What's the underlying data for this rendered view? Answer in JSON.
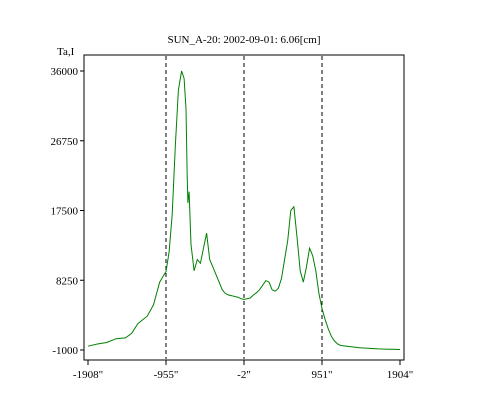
{
  "chart_data": {
    "type": "line",
    "title": "SUN_A-20: 2002-09-01: 6.06[cm]",
    "ylabel": "Ta,I",
    "xlabel": "",
    "xlim": [
      -1908,
      1904
    ],
    "ylim": [
      -1000,
      36000
    ],
    "x_ticks": [
      {
        "value": -1908,
        "label": "-1908\""
      },
      {
        "value": -955,
        "label": "-955\""
      },
      {
        "value": -2,
        "label": "-2\""
      },
      {
        "value": 951,
        "label": "951\""
      },
      {
        "value": 1904,
        "label": "1904\""
      }
    ],
    "y_ticks": [
      {
        "value": 36000,
        "label": "36000"
      },
      {
        "value": 26750,
        "label": "26750"
      },
      {
        "value": 17500,
        "label": "17500"
      },
      {
        "value": 8250,
        "label": "8250"
      },
      {
        "value": -1000,
        "label": "-1000"
      }
    ],
    "vertical_lines": [
      -955,
      -2,
      951
    ],
    "series_color": "#008000",
    "series": [
      {
        "x": [
          -1908,
          -1794,
          -1680,
          -1565,
          -1451,
          -1375,
          -1298,
          -1184,
          -1108,
          -1070,
          -1032,
          -994,
          -955,
          -917,
          -879,
          -841,
          -803,
          -764,
          -734,
          -711,
          -696,
          -688,
          -673,
          -650,
          -612,
          -573,
          -535,
          -497,
          -459,
          -421,
          -382,
          -344,
          -306,
          -268,
          -230,
          -191,
          -153,
          -115,
          -77,
          -38,
          -2,
          36,
          74,
          113,
          151,
          189,
          227,
          265,
          303,
          341,
          380,
          418,
          456,
          494,
          532,
          570,
          608,
          646,
          685,
          723,
          761,
          799,
          837,
          875,
          913,
          951,
          990,
          1028,
          1066,
          1104,
          1142,
          1180,
          1257,
          1333,
          1409,
          1485,
          1561,
          1637,
          1713,
          1790,
          1866,
          1904
        ],
        "values": [
          -500,
          -200,
          0,
          500,
          600,
          1200,
          2500,
          3500,
          5000,
          6500,
          8000,
          8700,
          9400,
          12000,
          17000,
          26000,
          33500,
          36000,
          35000,
          31000,
          22000,
          18500,
          20000,
          13000,
          9500,
          11000,
          10500,
          12500,
          14500,
          11000,
          10000,
          9000,
          8000,
          7000,
          6500,
          6300,
          6200,
          6100,
          6000,
          5800,
          5700,
          5800,
          5900,
          6300,
          6600,
          7000,
          7600,
          8200,
          8000,
          7000,
          6800,
          7200,
          8500,
          11000,
          13500,
          17500,
          18000,
          14000,
          9500,
          8000,
          10000,
          12500,
          11500,
          9500,
          6500,
          4500,
          3000,
          1800,
          800,
          200,
          -200,
          -400,
          -500,
          -600,
          -700,
          -750,
          -800,
          -850,
          -880,
          -900,
          -920,
          -930
        ]
      }
    ]
  }
}
